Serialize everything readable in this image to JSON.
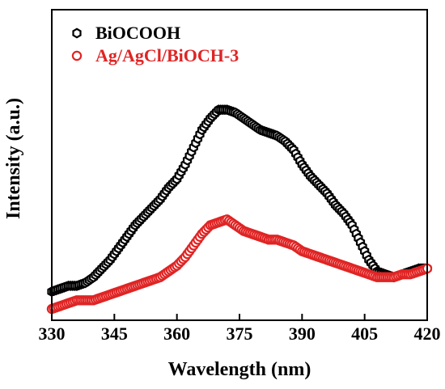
{
  "chart_data": {
    "type": "scatter",
    "title": "",
    "xlabel": "Wavelength (nm)",
    "ylabel": "Intensity (a.u.)",
    "xlim": [
      330,
      420
    ],
    "ylim": [
      0,
      100
    ],
    "x_ticks": [
      "330",
      "345",
      "360",
      "375",
      "390",
      "405",
      "420"
    ],
    "y_ticks_visible": false,
    "legend_position": "top-left",
    "series": [
      {
        "name": "BiOCOOH",
        "color": "#000000",
        "marker": "open-hexagon",
        "x": [
          330,
          332,
          334,
          336,
          338,
          340,
          342,
          344,
          346,
          348,
          350,
          352,
          354,
          356,
          358,
          360,
          362,
          364,
          366,
          368,
          370,
          372,
          374,
          376,
          378,
          380,
          382,
          384,
          386,
          388,
          390,
          392,
          394,
          396,
          398,
          400,
          402,
          404,
          406,
          408,
          410,
          412,
          414,
          416,
          418,
          420
        ],
        "y": [
          6,
          7,
          8,
          8,
          9,
          11,
          14,
          17,
          21,
          25,
          29,
          32,
          35,
          38,
          42,
          45,
          50,
          56,
          62,
          66,
          69,
          69,
          68,
          66,
          64,
          62,
          61,
          60,
          58,
          55,
          50,
          46,
          43,
          40,
          36,
          33,
          29,
          23,
          17,
          13,
          12,
          11,
          12,
          13,
          14,
          14
        ]
      },
      {
        "name": "Ag/AgCl/BiOCH-3",
        "color": "#e02424",
        "marker": "open-circle",
        "x": [
          330,
          332,
          334,
          336,
          338,
          340,
          342,
          344,
          346,
          348,
          350,
          352,
          354,
          356,
          358,
          360,
          362,
          364,
          366,
          368,
          370,
          372,
          374,
          376,
          378,
          380,
          382,
          384,
          386,
          388,
          390,
          392,
          394,
          396,
          398,
          400,
          402,
          404,
          406,
          408,
          410,
          412,
          414,
          416,
          418,
          420
        ],
        "y": [
          0,
          1,
          2,
          3,
          3,
          3,
          4,
          5,
          6,
          7,
          8,
          9,
          10,
          11,
          13,
          15,
          18,
          22,
          26,
          29,
          30,
          31,
          29,
          27,
          26,
          25,
          24,
          24,
          23,
          22,
          20,
          19,
          18,
          17,
          16,
          15,
          14,
          13,
          12,
          11,
          11,
          11,
          12,
          12,
          13,
          14
        ]
      }
    ]
  }
}
